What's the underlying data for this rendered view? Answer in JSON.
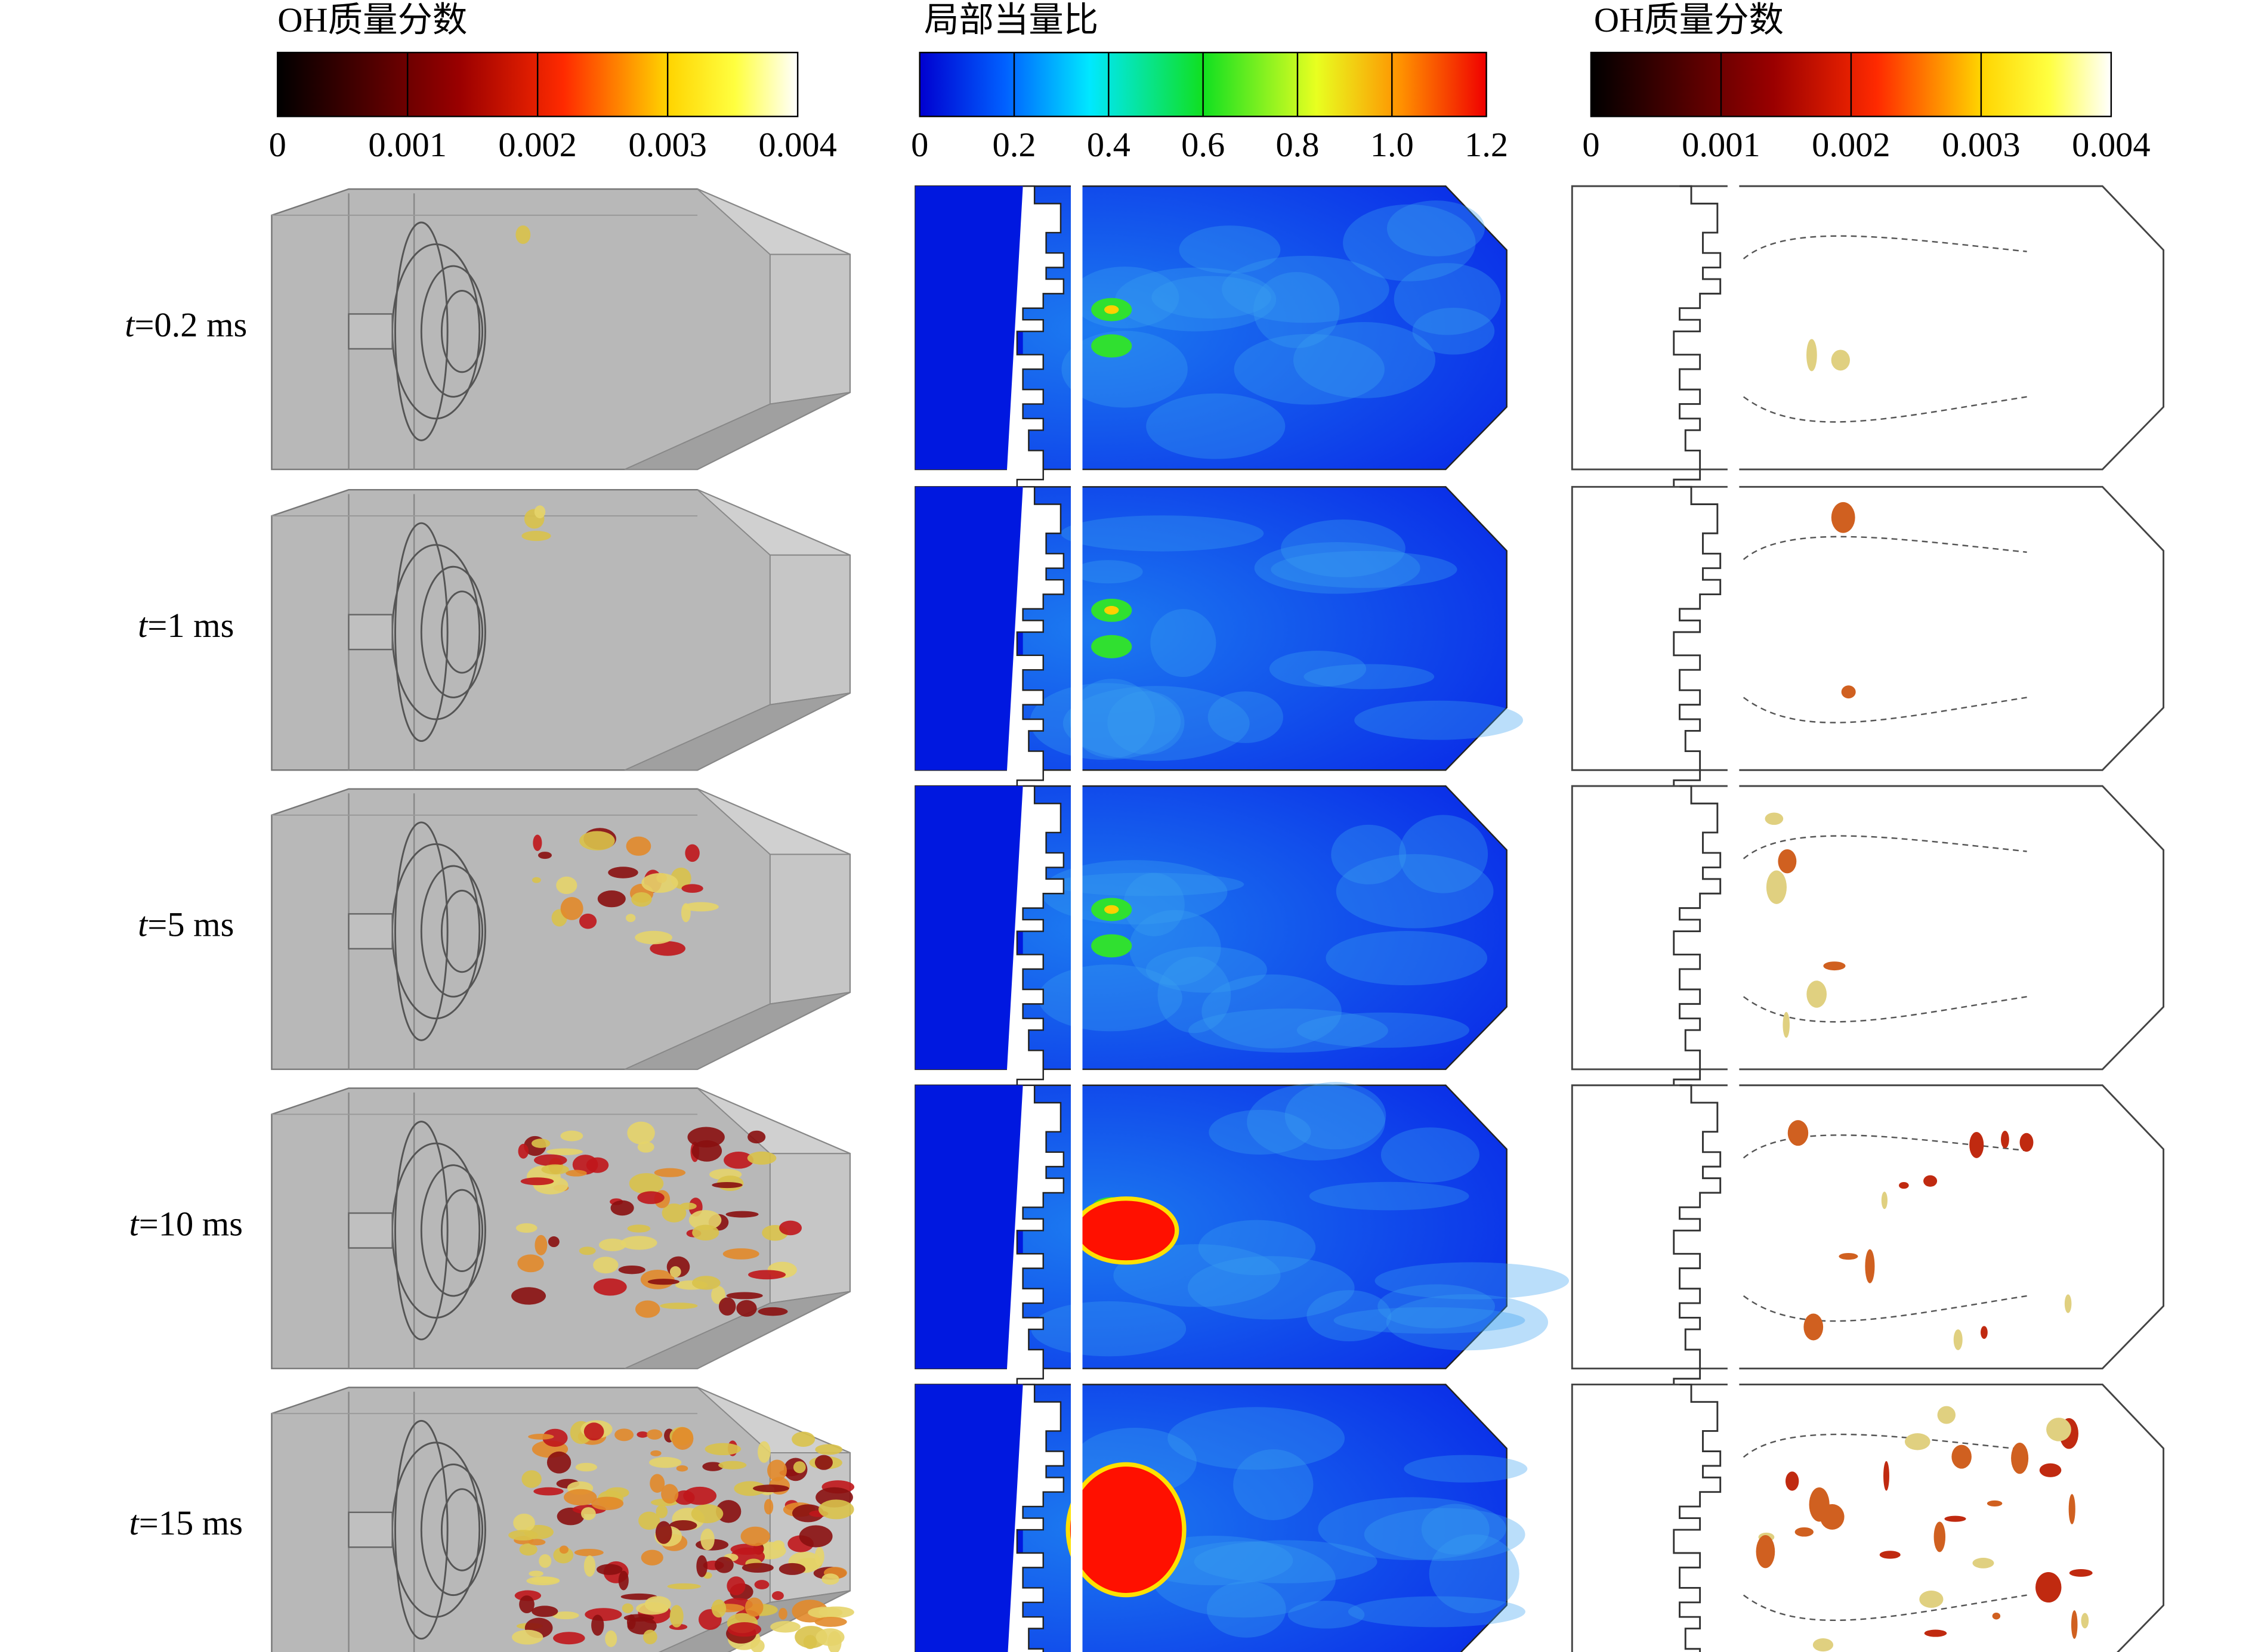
{
  "colorbars": [
    {
      "title": "OH质量分数",
      "ticks": [
        "0",
        "0.001",
        "0.002",
        "0.003",
        "0.004"
      ]
    },
    {
      "title": "局部当量比",
      "ticks": [
        "0",
        "0.2",
        "0.4",
        "0.6",
        "0.8",
        "1.0",
        "1.2"
      ]
    },
    {
      "title": "OH质量分数",
      "ticks": [
        "0",
        "0.001",
        "0.002",
        "0.003",
        "0.004"
      ]
    }
  ],
  "rows": [
    {
      "var": "t",
      "text": "=0.2 ms"
    },
    {
      "var": "t",
      "text": "=1 ms"
    },
    {
      "var": "t",
      "text": "=5 ms"
    },
    {
      "var": "t",
      "text": "=10 ms"
    },
    {
      "var": "t",
      "text": "=15 ms"
    }
  ]
}
